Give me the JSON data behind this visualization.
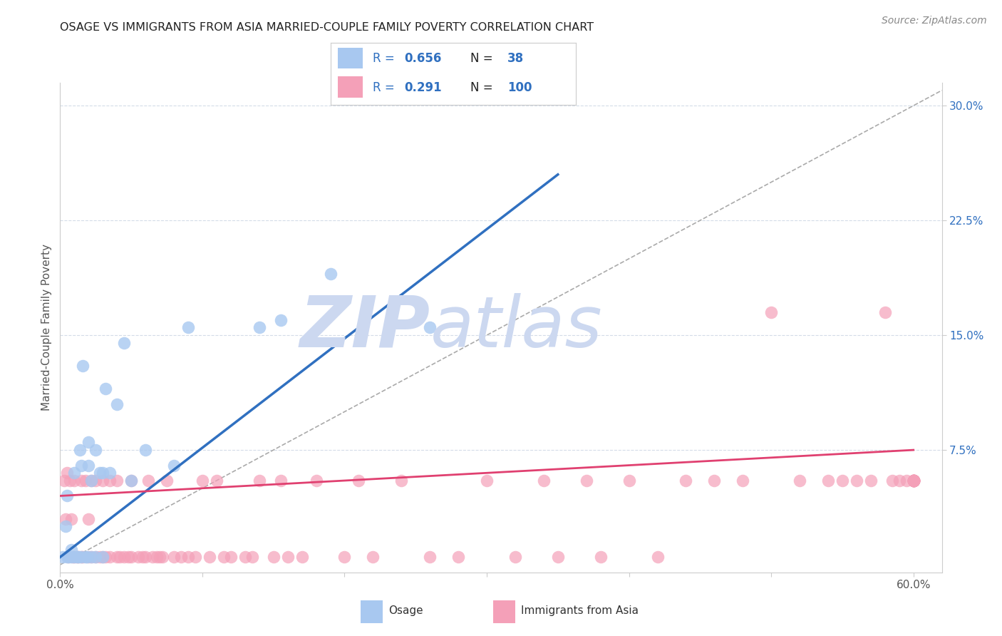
{
  "title": "OSAGE VS IMMIGRANTS FROM ASIA MARRIED-COUPLE FAMILY POVERTY CORRELATION CHART",
  "source": "Source: ZipAtlas.com",
  "ylabel": "Married-Couple Family Poverty",
  "xlim": [
    0.0,
    0.62
  ],
  "ylim": [
    -0.005,
    0.315
  ],
  "xticks": [
    0.0,
    0.1,
    0.2,
    0.3,
    0.4,
    0.5,
    0.6
  ],
  "xticklabels": [
    "0.0%",
    "",
    "",
    "",
    "",
    "",
    "60.0%"
  ],
  "yticks_right": [
    0.075,
    0.15,
    0.225,
    0.3
  ],
  "ytick_right_labels": [
    "7.5%",
    "15.0%",
    "22.5%",
    "30.0%"
  ],
  "legend_R1": "0.656",
  "legend_N1": "38",
  "legend_R2": "0.291",
  "legend_N2": "100",
  "osage_color": "#a8c8f0",
  "asia_color": "#f4a0b8",
  "line_blue": "#3070c0",
  "line_pink": "#e04070",
  "watermark_color": "#ccd8f0",
  "background_color": "#ffffff",
  "grid_color": "#d4dce8",
  "osage_scatter_x": [
    0.002,
    0.004,
    0.005,
    0.005,
    0.006,
    0.008,
    0.008,
    0.01,
    0.01,
    0.012,
    0.013,
    0.014,
    0.015,
    0.015,
    0.016,
    0.018,
    0.019,
    0.02,
    0.02,
    0.022,
    0.022,
    0.025,
    0.025,
    0.028,
    0.03,
    0.03,
    0.032,
    0.035,
    0.04,
    0.045,
    0.05,
    0.06,
    0.08,
    0.09,
    0.14,
    0.155,
    0.19,
    0.26
  ],
  "osage_scatter_y": [
    0.005,
    0.025,
    0.005,
    0.045,
    0.005,
    0.005,
    0.01,
    0.005,
    0.06,
    0.005,
    0.005,
    0.075,
    0.005,
    0.065,
    0.13,
    0.005,
    0.005,
    0.065,
    0.08,
    0.005,
    0.055,
    0.005,
    0.075,
    0.06,
    0.005,
    0.06,
    0.115,
    0.06,
    0.105,
    0.145,
    0.055,
    0.075,
    0.065,
    0.155,
    0.155,
    0.16,
    0.19,
    0.155
  ],
  "asia_scatter_x": [
    0.003,
    0.004,
    0.005,
    0.006,
    0.007,
    0.008,
    0.009,
    0.01,
    0.01,
    0.012,
    0.013,
    0.015,
    0.015,
    0.016,
    0.018,
    0.02,
    0.02,
    0.022,
    0.022,
    0.025,
    0.025,
    0.028,
    0.03,
    0.03,
    0.032,
    0.035,
    0.035,
    0.04,
    0.04,
    0.042,
    0.045,
    0.048,
    0.05,
    0.05,
    0.055,
    0.058,
    0.06,
    0.062,
    0.065,
    0.068,
    0.07,
    0.072,
    0.075,
    0.08,
    0.085,
    0.09,
    0.095,
    0.1,
    0.105,
    0.11,
    0.115,
    0.12,
    0.13,
    0.135,
    0.14,
    0.15,
    0.155,
    0.16,
    0.17,
    0.18,
    0.2,
    0.21,
    0.22,
    0.24,
    0.26,
    0.28,
    0.3,
    0.32,
    0.34,
    0.35,
    0.37,
    0.38,
    0.4,
    0.42,
    0.44,
    0.46,
    0.48,
    0.5,
    0.52,
    0.54,
    0.55,
    0.56,
    0.57,
    0.58,
    0.585,
    0.59,
    0.595,
    0.6,
    0.6,
    0.6,
    0.6,
    0.6,
    0.6,
    0.6,
    0.6,
    0.6,
    0.6,
    0.6,
    0.6,
    0.6
  ],
  "asia_scatter_y": [
    0.055,
    0.03,
    0.06,
    0.005,
    0.055,
    0.03,
    0.005,
    0.055,
    0.005,
    0.005,
    0.005,
    0.005,
    0.055,
    0.005,
    0.055,
    0.03,
    0.005,
    0.005,
    0.055,
    0.005,
    0.055,
    0.005,
    0.005,
    0.055,
    0.005,
    0.005,
    0.055,
    0.005,
    0.055,
    0.005,
    0.005,
    0.005,
    0.005,
    0.055,
    0.005,
    0.005,
    0.005,
    0.055,
    0.005,
    0.005,
    0.005,
    0.005,
    0.055,
    0.005,
    0.005,
    0.005,
    0.005,
    0.055,
    0.005,
    0.055,
    0.005,
    0.005,
    0.005,
    0.005,
    0.055,
    0.005,
    0.055,
    0.005,
    0.005,
    0.055,
    0.005,
    0.055,
    0.005,
    0.055,
    0.005,
    0.005,
    0.055,
    0.005,
    0.055,
    0.005,
    0.055,
    0.005,
    0.055,
    0.005,
    0.055,
    0.055,
    0.055,
    0.165,
    0.055,
    0.055,
    0.055,
    0.055,
    0.055,
    0.165,
    0.055,
    0.055,
    0.055,
    0.055,
    0.055,
    0.055,
    0.055,
    0.055,
    0.055,
    0.055,
    0.055,
    0.055,
    0.055,
    0.055,
    0.055,
    0.055
  ],
  "blue_line_x": [
    0.0,
    0.35
  ],
  "blue_line_y": [
    0.005,
    0.255
  ],
  "pink_line_x": [
    0.0,
    0.6
  ],
  "pink_line_y": [
    0.045,
    0.075
  ],
  "diag_line_x": [
    0.0,
    0.62
  ],
  "diag_line_y": [
    0.0,
    0.31
  ]
}
